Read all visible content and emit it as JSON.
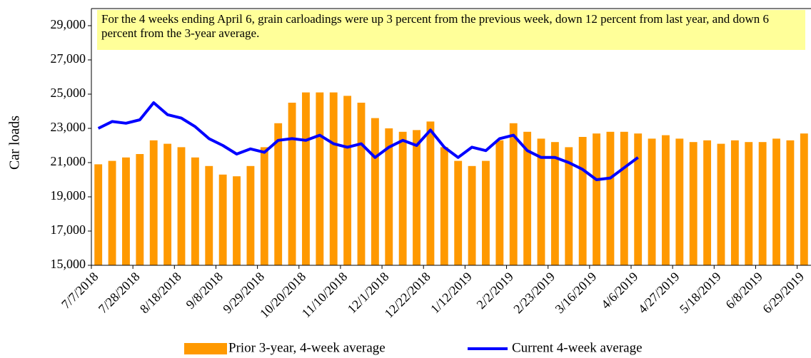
{
  "chart_data": {
    "type": "bar_line",
    "annotation": "For the 4 weeks ending April 6, grain carloadings were up 3 percent from the previous week, down 12 percent from last year, and down 6 percent from the 3-year average.",
    "ylabel": "Car loads",
    "categories": [
      "7/7/2018",
      null,
      null,
      "7/28/2018",
      null,
      null,
      "8/18/2018",
      null,
      null,
      "9/8/2018",
      null,
      null,
      "9/29/2018",
      null,
      null,
      "10/20/2018",
      null,
      null,
      "11/10/2018",
      null,
      null,
      "12/1/2018",
      null,
      null,
      "12/22/2018",
      null,
      null,
      "1/12/2019",
      null,
      null,
      "2/2/2019",
      null,
      null,
      "2/23/2019",
      null,
      null,
      "3/16/2019",
      null,
      null,
      "4/6/2019",
      null,
      null,
      "4/27/2019",
      null,
      null,
      "5/18/2019",
      null,
      null,
      "6/8/2019",
      null,
      null,
      "6/29/2019"
    ],
    "series": [
      {
        "name": "Prior 3-year, 4-week average",
        "color": "#ff9900",
        "kind": "bar",
        "values": [
          20900,
          21100,
          21300,
          21500,
          22300,
          22100,
          21900,
          21300,
          20800,
          20300,
          20200,
          20800,
          21900,
          23300,
          24500,
          25100,
          25100,
          25100,
          24900,
          24500,
          23600,
          23000,
          22800,
          22900,
          23400,
          21900,
          21100,
          20800,
          21100,
          22300,
          23300,
          22800,
          22400,
          22200,
          21900,
          22500,
          22700,
          22800,
          22800,
          22700,
          22400,
          22600,
          22400,
          22200,
          22300,
          22100,
          22300,
          22200,
          22200,
          22400,
          22300,
          22700
        ]
      },
      {
        "name": "Current 4-week average",
        "color": "#0000ff",
        "kind": "line",
        "values": [
          23000,
          23400,
          23300,
          23500,
          24500,
          23800,
          23600,
          23100,
          22400,
          22000,
          21500,
          21800,
          21600,
          22300,
          22400,
          22300,
          22600,
          22100,
          21900,
          22100,
          21300,
          21900,
          22300,
          22000,
          22900,
          21900,
          21300,
          21900,
          21700,
          22400,
          22600,
          21700,
          21300,
          21300,
          21000,
          20600,
          20000,
          20100,
          20700,
          21300,
          null,
          null,
          null,
          null,
          null,
          null,
          null,
          null,
          null,
          null,
          null,
          null
        ]
      }
    ],
    "ylim": [
      15000,
      30000
    ],
    "yticks": [
      {
        "value": 15000,
        "label": "15,000"
      },
      {
        "value": 17000,
        "label": "17,000"
      },
      {
        "value": 19000,
        "label": "19,000"
      },
      {
        "value": 21000,
        "label": "21,000"
      },
      {
        "value": 23000,
        "label": "23,000"
      },
      {
        "value": 25000,
        "label": "25,000"
      },
      {
        "value": 27000,
        "label": "27,000"
      },
      {
        "value": 29000,
        "label": "29,000"
      }
    ],
    "grid": false
  }
}
